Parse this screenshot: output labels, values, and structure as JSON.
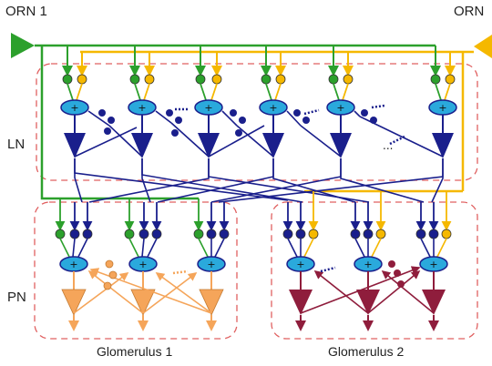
{
  "labels": {
    "orn_left": "ORN 1",
    "orn_right": "ORN",
    "ln": "LN",
    "pn": "PN",
    "ellipsis": "...",
    "plus": "+",
    "glomerulus_1": "Glomerulus 1",
    "glomerulus_2": "Glomerulus 2"
  },
  "colors": {
    "orn_green": "#2ca02c",
    "orn_yellow": "#f5b800",
    "ln_blue": "#1a1f8c",
    "plus_node": "#2aa9dc",
    "pn_orange": "#f5a55a",
    "pn_red": "#8f1d3c",
    "box_dashed": "#e06060"
  },
  "icons": {
    "orn_input": "right-triangle-icon",
    "ln_neuron": "down-triangle-icon",
    "pn_neuron": "down-triangle-icon",
    "summation": "plus-ellipse-icon"
  }
}
